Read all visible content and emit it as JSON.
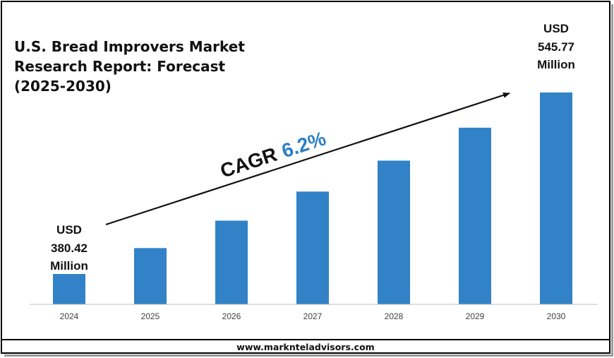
{
  "title": "U.S. Bread Improvers Market Research Report: Forecast (2025-2030)",
  "footer": "www.marknteladvisors.com",
  "cagr": {
    "label": "CAGR",
    "value": "6.2%"
  },
  "annotations": {
    "start": [
      "USD",
      "380.42",
      "Million"
    ],
    "end": [
      "USD",
      "545.77",
      "Million"
    ]
  },
  "colors": {
    "bar": "#3182c6",
    "cagr_value": "#2d7fc5",
    "axis": "#bfbfbf",
    "text": "#111111"
  },
  "chart_data": {
    "type": "bar",
    "categories": [
      "2024",
      "2025",
      "2026",
      "2027",
      "2028",
      "2029",
      "2030"
    ],
    "values": [
      380.42,
      404.0,
      429.0,
      455.5,
      483.7,
      513.7,
      545.77
    ],
    "title": "U.S. Bread Improvers Market Research Report: Forecast (2025-2030)",
    "unit": "USD Million",
    "xlabel": "",
    "ylabel": "",
    "grid": false,
    "legend": "none"
  }
}
